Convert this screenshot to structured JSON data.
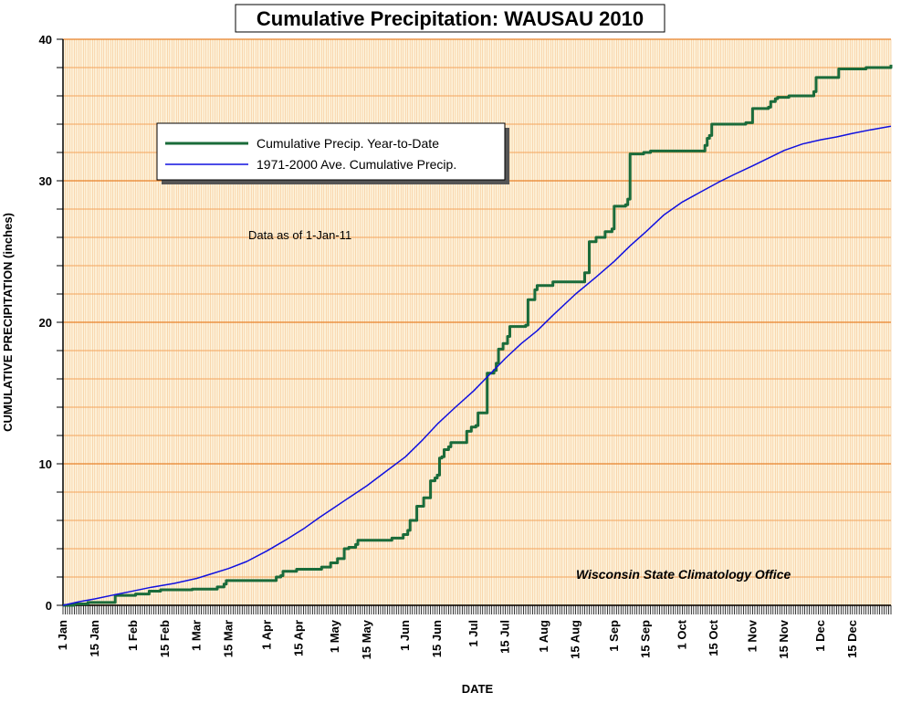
{
  "chart_data": {
    "type": "line",
    "title": "Cumulative Precipitation: WAUSAU 2010",
    "xlabel": "DATE",
    "ylabel": "CUMULATIVE PRECIPITATION (inches)",
    "ylim": [
      0,
      40
    ],
    "yticks": [
      0,
      10,
      20,
      30,
      40
    ],
    "xlim": [
      1,
      366
    ],
    "x_unit": "day of year 2010",
    "xticks": [
      {
        "day": 1,
        "label": "1 Jan"
      },
      {
        "day": 15,
        "label": "15 Jan"
      },
      {
        "day": 32,
        "label": "1 Feb"
      },
      {
        "day": 46,
        "label": "15 Feb"
      },
      {
        "day": 60,
        "label": "1 Mar"
      },
      {
        "day": 74,
        "label": "15 Mar"
      },
      {
        "day": 91,
        "label": "1 Apr"
      },
      {
        "day": 105,
        "label": "15 Apr"
      },
      {
        "day": 121,
        "label": "1 May"
      },
      {
        "day": 135,
        "label": "15 May"
      },
      {
        "day": 152,
        "label": "1 Jun"
      },
      {
        "day": 166,
        "label": "15 Jun"
      },
      {
        "day": 182,
        "label": "1 Jul"
      },
      {
        "day": 196,
        "label": "15 Jul"
      },
      {
        "day": 213,
        "label": "1 Aug"
      },
      {
        "day": 227,
        "label": "15 Aug"
      },
      {
        "day": 244,
        "label": "1 Sep"
      },
      {
        "day": 258,
        "label": "15 Sep"
      },
      {
        "day": 274,
        "label": "1 Oct"
      },
      {
        "day": 288,
        "label": "15 Oct"
      },
      {
        "day": 305,
        "label": "1 Nov"
      },
      {
        "day": 319,
        "label": "15 Nov"
      },
      {
        "day": 335,
        "label": "1 Dec"
      },
      {
        "day": 349,
        "label": "15 Dec"
      }
    ],
    "grid": true,
    "legend_position": "top-left",
    "annotations": [
      {
        "text": "Data as of 1-Jan-11"
      },
      {
        "text": "Wisconsin State Climatology Office"
      }
    ],
    "series": [
      {
        "name": "Cumulative Precip. Year-to-Date",
        "color": "#1a6b3a",
        "style": "step",
        "points": [
          [
            1,
            0.0
          ],
          [
            6,
            0.1
          ],
          [
            12,
            0.2
          ],
          [
            23,
            0.2
          ],
          [
            24,
            0.7
          ],
          [
            32,
            0.7
          ],
          [
            33,
            0.8
          ],
          [
            38,
            0.8
          ],
          [
            39,
            1.0
          ],
          [
            43,
            1.0
          ],
          [
            44,
            1.1
          ],
          [
            57,
            1.1
          ],
          [
            58,
            1.15
          ],
          [
            68,
            1.15
          ],
          [
            69,
            1.3
          ],
          [
            72,
            1.5
          ],
          [
            73,
            1.75
          ],
          [
            94,
            1.75
          ],
          [
            95,
            2.0
          ],
          [
            97,
            2.1
          ],
          [
            98,
            2.4
          ],
          [
            103,
            2.4
          ],
          [
            104,
            2.55
          ],
          [
            114,
            2.55
          ],
          [
            115,
            2.7
          ],
          [
            118,
            2.7
          ],
          [
            119,
            3.0
          ],
          [
            121,
            3.0
          ],
          [
            122,
            3.3
          ],
          [
            124,
            3.3
          ],
          [
            125,
            4.0
          ],
          [
            127,
            4.1
          ],
          [
            130,
            4.3
          ],
          [
            131,
            4.6
          ],
          [
            145,
            4.6
          ],
          [
            146,
            4.75
          ],
          [
            150,
            4.75
          ],
          [
            151,
            5.0
          ],
          [
            153,
            5.3
          ],
          [
            154,
            6.0
          ],
          [
            156,
            6.0
          ],
          [
            157,
            7.0
          ],
          [
            159,
            7.0
          ],
          [
            160,
            7.6
          ],
          [
            162,
            7.6
          ],
          [
            163,
            8.8
          ],
          [
            165,
            9.0
          ],
          [
            166,
            9.2
          ],
          [
            167,
            10.4
          ],
          [
            168,
            10.5
          ],
          [
            169,
            11.0
          ],
          [
            171,
            11.2
          ],
          [
            172,
            11.5
          ],
          [
            178,
            11.5
          ],
          [
            179,
            12.3
          ],
          [
            181,
            12.6
          ],
          [
            183,
            12.7
          ],
          [
            184,
            13.6
          ],
          [
            187,
            13.6
          ],
          [
            188,
            16.4
          ],
          [
            190,
            16.4
          ],
          [
            191,
            16.6
          ],
          [
            192,
            17.1
          ],
          [
            193,
            18.1
          ],
          [
            195,
            18.5
          ],
          [
            197,
            19.0
          ],
          [
            198,
            19.7
          ],
          [
            202,
            19.7
          ],
          [
            205,
            19.8
          ],
          [
            206,
            21.6
          ],
          [
            208,
            21.6
          ],
          [
            209,
            22.3
          ],
          [
            210,
            22.6
          ],
          [
            216,
            22.6
          ],
          [
            217,
            22.85
          ],
          [
            230,
            22.85
          ],
          [
            231,
            23.5
          ],
          [
            233,
            25.7
          ],
          [
            235,
            25.7
          ],
          [
            236,
            26.0
          ],
          [
            239,
            26.0
          ],
          [
            240,
            26.4
          ],
          [
            242,
            26.4
          ],
          [
            243,
            26.6
          ],
          [
            244,
            28.2
          ],
          [
            249,
            28.3
          ],
          [
            250,
            28.7
          ],
          [
            251,
            31.9
          ],
          [
            257,
            32.0
          ],
          [
            260,
            32.1
          ],
          [
            283,
            32.1
          ],
          [
            284,
            32.5
          ],
          [
            285,
            33.0
          ],
          [
            286,
            33.2
          ],
          [
            287,
            34.0
          ],
          [
            302,
            34.1
          ],
          [
            304,
            34.1
          ],
          [
            305,
            35.1
          ],
          [
            312,
            35.2
          ],
          [
            313,
            35.6
          ],
          [
            315,
            35.8
          ],
          [
            316,
            35.9
          ],
          [
            320,
            35.9
          ],
          [
            321,
            36.0
          ],
          [
            331,
            36.0
          ],
          [
            332,
            36.3
          ],
          [
            333,
            37.3
          ],
          [
            342,
            37.3
          ],
          [
            343,
            37.9
          ],
          [
            355,
            38.0
          ],
          [
            356,
            38.0
          ],
          [
            366,
            38.2
          ]
        ]
      },
      {
        "name": "1971-2000 Ave. Cumulative Precip.",
        "color": "#1010e0",
        "style": "line",
        "points": [
          [
            1,
            0.0
          ],
          [
            8,
            0.25
          ],
          [
            15,
            0.45
          ],
          [
            23,
            0.72
          ],
          [
            31,
            0.98
          ],
          [
            40,
            1.28
          ],
          [
            50,
            1.55
          ],
          [
            60,
            1.9
          ],
          [
            66,
            2.2
          ],
          [
            74,
            2.6
          ],
          [
            82,
            3.1
          ],
          [
            91,
            3.85
          ],
          [
            99,
            4.6
          ],
          [
            107,
            5.4
          ],
          [
            114,
            6.2
          ],
          [
            121,
            6.95
          ],
          [
            127,
            7.6
          ],
          [
            135,
            8.45
          ],
          [
            142,
            9.3
          ],
          [
            152,
            10.5
          ],
          [
            159,
            11.6
          ],
          [
            166,
            12.8
          ],
          [
            174,
            14.0
          ],
          [
            182,
            15.15
          ],
          [
            189,
            16.3
          ],
          [
            196,
            17.45
          ],
          [
            203,
            18.5
          ],
          [
            210,
            19.4
          ],
          [
            217,
            20.5
          ],
          [
            227,
            22.0
          ],
          [
            236,
            23.2
          ],
          [
            244,
            24.3
          ],
          [
            251,
            25.4
          ],
          [
            258,
            26.4
          ],
          [
            266,
            27.6
          ],
          [
            274,
            28.5
          ],
          [
            282,
            29.2
          ],
          [
            290,
            29.9
          ],
          [
            297,
            30.45
          ],
          [
            305,
            31.05
          ],
          [
            312,
            31.6
          ],
          [
            319,
            32.15
          ],
          [
            327,
            32.6
          ],
          [
            335,
            32.9
          ],
          [
            342,
            33.1
          ],
          [
            349,
            33.35
          ],
          [
            357,
            33.6
          ],
          [
            366,
            33.85
          ]
        ]
      }
    ]
  }
}
